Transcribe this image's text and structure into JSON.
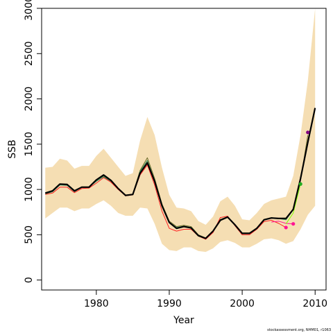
{
  "chart_data": {
    "type": "line",
    "xlabel": "Year",
    "ylabel": "SSB",
    "xlim": [
      1972.5,
      2011.5
    ],
    "ylim": [
      -110,
      3000
    ],
    "xticks": [
      1980,
      1990,
      2000,
      2010
    ],
    "yticks": [
      0,
      500,
      1000,
      1500,
      2000,
      2500,
      3000
    ],
    "grid": false,
    "colors": {
      "band": "#F5DEB3",
      "main": "#000000",
      "olive": "#6B6B2A",
      "green": "#2E8B57",
      "red": "#FF2020",
      "pink": "#FF1493",
      "lime": "#7FFF00",
      "green_point": "#22AA22",
      "purple": "#800080",
      "point_pink": "#FF1493",
      "point_red": "#FF1493"
    },
    "band": {
      "x": [
        1973,
        1974,
        1975,
        1976,
        1977,
        1978,
        1979,
        1980,
        1981,
        1982,
        1983,
        1984,
        1985,
        1986,
        1987,
        1988,
        1989,
        1990,
        1991,
        1992,
        1993,
        1994,
        1995,
        1996,
        1997,
        1998,
        1999,
        2000,
        2001,
        2002,
        2003,
        2004,
        2005,
        2006,
        2007,
        2008,
        2009,
        2010
      ],
      "lower": [
        680,
        740,
        800,
        800,
        760,
        790,
        790,
        840,
        880,
        820,
        740,
        710,
        710,
        800,
        790,
        620,
        400,
        330,
        320,
        360,
        360,
        320,
        310,
        350,
        420,
        440,
        410,
        360,
        360,
        400,
        450,
        460,
        440,
        400,
        430,
        560,
        720,
        820
      ],
      "upper": [
        1240,
        1250,
        1340,
        1320,
        1230,
        1260,
        1260,
        1370,
        1450,
        1350,
        1250,
        1150,
        1180,
        1540,
        1800,
        1600,
        1240,
        940,
        800,
        790,
        760,
        650,
        610,
        700,
        870,
        920,
        820,
        670,
        660,
        740,
        840,
        880,
        900,
        920,
        1150,
        1600,
        2200,
        3000
      ]
    },
    "series": [
      {
        "color": "main",
        "x": [
          1973,
          1974,
          1975,
          1976,
          1977,
          1978,
          1979,
          1980,
          1981,
          1982,
          1983,
          1984,
          1985,
          1986,
          1987,
          1988,
          1989,
          1990,
          1991,
          1992,
          1993,
          1994,
          1995,
          1996,
          1997,
          1998,
          1999,
          2000,
          2001,
          2002,
          2003,
          2004,
          2005,
          2006,
          2007,
          2008,
          2009,
          2010
        ],
        "values": [
          960,
          985,
          1060,
          1055,
          985,
          1025,
          1025,
          1105,
          1160,
          1100,
          1010,
          935,
          945,
          1180,
          1295,
          1090,
          820,
          635,
          570,
          590,
          575,
          490,
          460,
          540,
          660,
          695,
          610,
          515,
          515,
          570,
          665,
          685,
          680,
          680,
          780,
          1120,
          1520,
          1900
        ]
      },
      {
        "color": "olive",
        "x": [
          1973,
          1974,
          1975,
          1976,
          1977,
          1978,
          1979,
          1980,
          1981,
          1982,
          1983,
          1984,
          1985,
          1986,
          1987,
          1988,
          1989,
          1990,
          1991,
          1992,
          1993,
          1994,
          1995,
          1996,
          1997,
          1998,
          1999,
          2000,
          2001,
          2002,
          2003,
          2004,
          2005,
          2006,
          2007,
          2008,
          2009
        ],
        "values": [
          955,
          980,
          1055,
          1050,
          980,
          1030,
          1030,
          1100,
          1150,
          1095,
          1010,
          930,
          950,
          1210,
          1350,
          1120,
          840,
          650,
          590,
          605,
          590,
          500,
          465,
          545,
          670,
          700,
          615,
          520,
          520,
          575,
          670,
          690,
          680,
          670,
          790,
          1100,
          1600
        ]
      },
      {
        "color": "green",
        "x": [
          1973,
          1974,
          1975,
          1976,
          1977,
          1978,
          1979,
          1980,
          1981,
          1982,
          1983,
          1984,
          1985,
          1986,
          1987,
          1988,
          1989,
          1990,
          1991,
          1992,
          1993,
          1994,
          1995,
          1996,
          1997,
          1998,
          1999,
          2000,
          2001,
          2002,
          2003,
          2004,
          2005,
          2006,
          2007,
          2008
        ],
        "values": [
          950,
          975,
          1050,
          1045,
          975,
          1025,
          1025,
          1090,
          1140,
          1090,
          1005,
          930,
          945,
          1200,
          1320,
          1100,
          830,
          640,
          580,
          595,
          580,
          495,
          462,
          545,
          665,
          695,
          612,
          518,
          518,
          572,
          668,
          688,
          678,
          665,
          775,
          1060
        ]
      },
      {
        "color": "red",
        "x": [
          1973,
          1974,
          1975,
          1976,
          1977,
          1978,
          1979,
          1980,
          1981,
          1982,
          1983,
          1984,
          1985,
          1986,
          1987,
          1988,
          1989,
          1990,
          1991,
          1992,
          1993,
          1994,
          1995,
          1996,
          1997,
          1998,
          1999,
          2000,
          2001,
          2002,
          2003,
          2004,
          2005,
          2006
        ],
        "values": [
          945,
          960,
          1025,
          1025,
          965,
          1010,
          1015,
          1070,
          1130,
          1080,
          1000,
          930,
          940,
          1160,
          1270,
          1050,
          760,
          570,
          540,
          560,
          560,
          485,
          450,
          525,
          690,
          705,
          600,
          500,
          500,
          560,
          645,
          660,
          625,
          580
        ]
      },
      {
        "color": "pink",
        "x": [
          2004,
          2005,
          2006,
          2007
        ],
        "values": [
          640,
          650,
          625,
          620
        ]
      },
      {
        "color": "lime",
        "x": [
          2006,
          2007,
          2008
        ],
        "values": [
          620,
          740,
          1060
        ]
      }
    ],
    "points": [
      {
        "x": 2006,
        "y": 580,
        "color": "point_red"
      },
      {
        "x": 2007,
        "y": 620,
        "color": "point_pink"
      },
      {
        "x": 2008,
        "y": 1060,
        "color": "green_point"
      },
      {
        "x": 2009,
        "y": 1630,
        "color": "purple"
      }
    ]
  },
  "footer": "stockassessment.org, NHM01, r1063"
}
